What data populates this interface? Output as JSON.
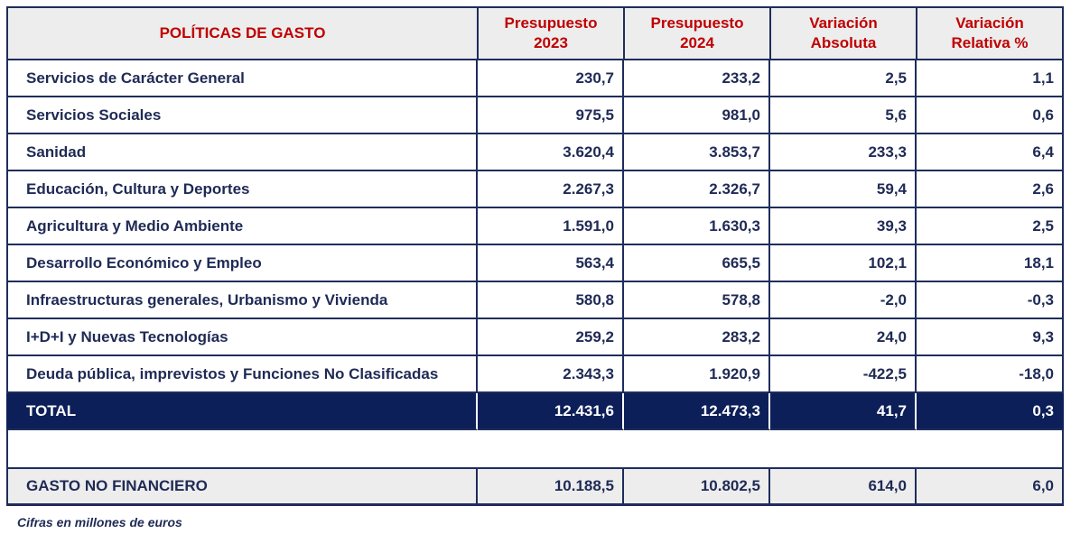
{
  "headers": {
    "col1": "POLÍTICAS DE GASTO",
    "col2_line1": "Presupuesto",
    "col2_line2": "2023",
    "col3_line1": "Presupuesto",
    "col3_line2": "2024",
    "col4_line1": "Variación",
    "col4_line2": "Absoluta",
    "col5_line1": "Variación",
    "col5_line2": "Relativa %"
  },
  "rows": [
    {
      "label": "Servicios de Carácter General",
      "p2023": "230,7",
      "p2024": "233,2",
      "abs": "2,5",
      "rel": "1,1"
    },
    {
      "label": "Servicios Sociales",
      "p2023": "975,5",
      "p2024": "981,0",
      "abs": "5,6",
      "rel": "0,6"
    },
    {
      "label": "Sanidad",
      "p2023": "3.620,4",
      "p2024": "3.853,7",
      "abs": "233,3",
      "rel": "6,4"
    },
    {
      "label": "Educación, Cultura y Deportes",
      "p2023": "2.267,3",
      "p2024": "2.326,7",
      "abs": "59,4",
      "rel": "2,6"
    },
    {
      "label": "Agricultura y Medio Ambiente",
      "p2023": "1.591,0",
      "p2024": "1.630,3",
      "abs": "39,3",
      "rel": "2,5"
    },
    {
      "label": "Desarrollo Económico y Empleo",
      "p2023": "563,4",
      "p2024": "665,5",
      "abs": "102,1",
      "rel": "18,1"
    },
    {
      "label": "Infraestructuras generales, Urbanismo y Vivienda",
      "p2023": "580,8",
      "p2024": "578,8",
      "abs": "-2,0",
      "rel": "-0,3"
    },
    {
      "label": "I+D+I y Nuevas Tecnologías",
      "p2023": "259,2",
      "p2024": "283,2",
      "abs": "24,0",
      "rel": "9,3"
    },
    {
      "label": "Deuda pública, imprevistos y Funciones No Clasificadas",
      "p2023": "2.343,3",
      "p2024": "1.920,9",
      "abs": "-422,5",
      "rel": "-18,0"
    }
  ],
  "total": {
    "label": "TOTAL",
    "p2023": "12.431,6",
    "p2024": "12.473,3",
    "abs": "41,7",
    "rel": "0,3"
  },
  "gasto_no_financiero": {
    "label": "GASTO NO FINANCIERO",
    "p2023": "10.188,5",
    "p2024": "10.802,5",
    "abs": "614,0",
    "rel": "6,0"
  },
  "footnote": "Cifras en millones de euros",
  "colors": {
    "header_text": "#c00000",
    "navy": "#0c1f58",
    "body_text": "#1f2a55",
    "header_bg": "#ededed"
  }
}
